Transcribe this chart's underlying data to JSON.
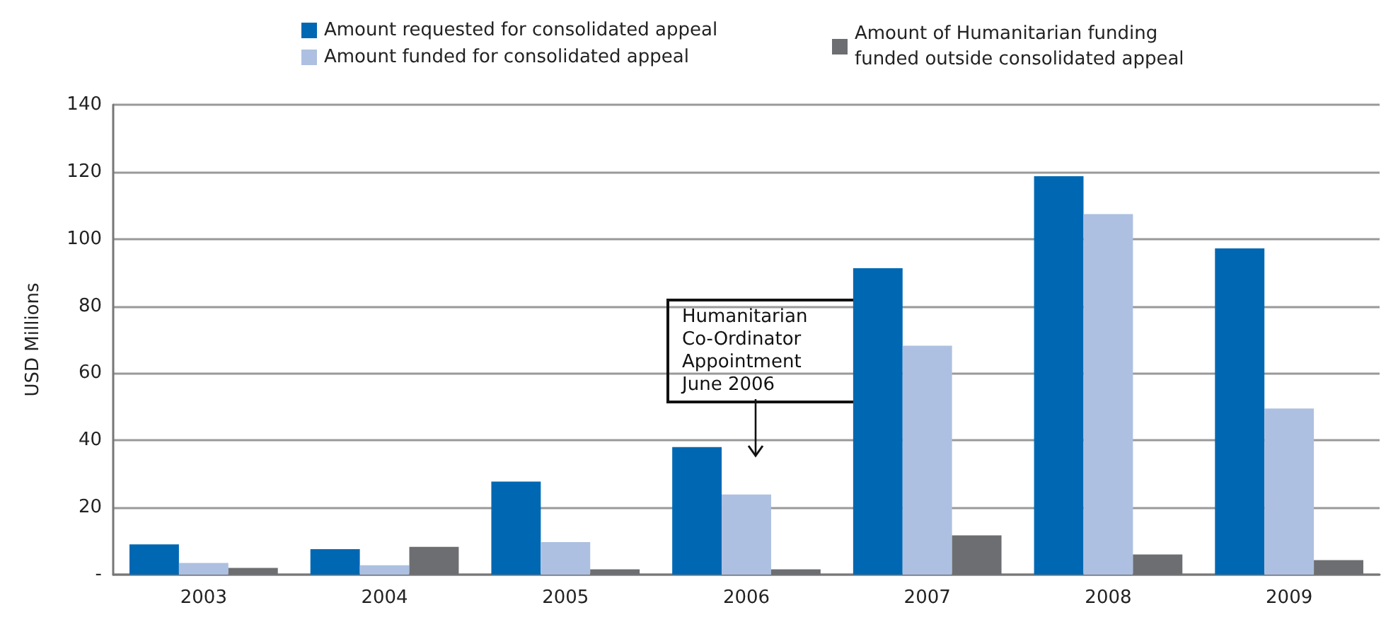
{
  "chart_data": {
    "type": "bar",
    "ylabel": "USD Millions",
    "categories": [
      "2003",
      "2004",
      "2005",
      "2006",
      "2007",
      "2008",
      "2009"
    ],
    "series": [
      {
        "name": "Amount requested for consolidated appeal",
        "color": "#0068b3",
        "values": [
          9,
          7.6,
          27.7,
          38,
          91.3,
          118.7,
          97.2
        ]
      },
      {
        "name": "Amount funded for consolidated appeal",
        "color": "#adc0e1",
        "values": [
          3.5,
          2.8,
          9.7,
          23.9,
          68.2,
          107.4,
          49.5
        ]
      },
      {
        "name": "Amount of Humanitarian funding funded outside consolidated appeal",
        "color": "#6d6e71",
        "values": [
          2,
          8.3,
          1.6,
          1.6,
          11.7,
          6,
          4.3
        ]
      }
    ],
    "ylim": [
      0,
      140
    ],
    "yticks": [
      {
        "value": 0,
        "label": "-"
      },
      20,
      40,
      60,
      80,
      100,
      120,
      140
    ],
    "grid": "y",
    "legend": "top",
    "annotations": [
      "Humanitarian Co-Ordinator Appointment June 2006"
    ]
  }
}
